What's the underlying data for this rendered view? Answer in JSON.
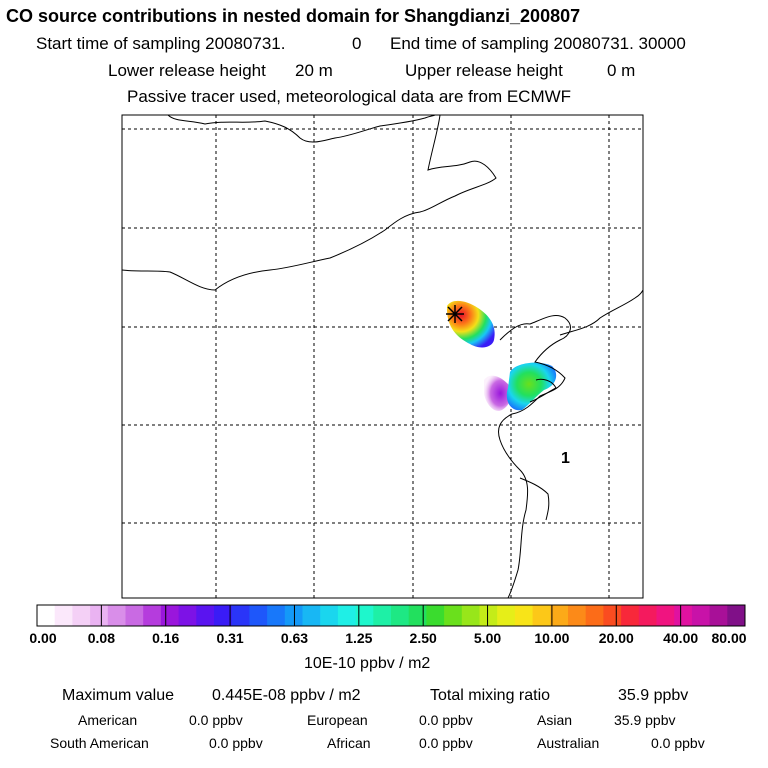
{
  "header": {
    "title": "CO  source contributions in nested domain for Shangdianzi_200807",
    "start_label": "Start time of sampling 20080731.",
    "start_hour": "0",
    "end_label": "End time of sampling 20080731. 30000",
    "lower_label": "Lower release height",
    "lower_value": "20 m",
    "upper_label": "Upper release height",
    "upper_value": "0 m",
    "note": "Passive tracer used, meteorological data are from ECMWF"
  },
  "map": {
    "region_label": "1",
    "station_marker": "station-star-icon"
  },
  "chart_data": {
    "type": "heatmap",
    "title": "CO  source contributions in nested domain for Shangdianzi_200807",
    "colorbar": {
      "unit": "10E-10 ppbv / m2",
      "tick_labels": [
        "0.00",
        "0.08",
        "0.16",
        "0.31",
        "0.63",
        "1.25",
        "2.50",
        "5.00",
        "10.00",
        "20.00",
        "40.00",
        "80.00"
      ],
      "colors": [
        "#ffffff",
        "#fbe8fb",
        "#f4d0f6",
        "#eab3f2",
        "#d98ee9",
        "#c96ae3",
        "#b53cdd",
        "#9a16dc",
        "#7d12e6",
        "#5a14f0",
        "#3a1cf6",
        "#2a35f8",
        "#1e57fa",
        "#1878fa",
        "#1499f8",
        "#18b7f4",
        "#1ad6ee",
        "#1fefe6",
        "#1ef7cc",
        "#1ef0a6",
        "#1ee884",
        "#22e05e",
        "#3adc2e",
        "#6ae01c",
        "#98e61a",
        "#c4ec18",
        "#e6ee18",
        "#f8e418",
        "#fcc818",
        "#fcaa18",
        "#fc8a18",
        "#fc6c18",
        "#fa4c20",
        "#f8283a",
        "#f41a5e",
        "#f01480",
        "#e012a0",
        "#c812a8",
        "#a81098",
        "#801088"
      ]
    },
    "stats": {
      "max_label": "Maximum value",
      "max_value": "0.445E-08 ppbv / m2",
      "total_label": "Total mixing ratio",
      "total_value": "35.9 ppbv"
    },
    "regions": [
      {
        "name": "American",
        "value": "0.0 ppbv"
      },
      {
        "name": "European",
        "value": "0.0 ppbv"
      },
      {
        "name": "Asian",
        "value": "35.9 ppbv"
      },
      {
        "name": "South American",
        "value": "0.0 ppbv"
      },
      {
        "name": "African",
        "value": "0.0 ppbv"
      },
      {
        "name": "Australian",
        "value": "0.0 ppbv"
      }
    ]
  }
}
